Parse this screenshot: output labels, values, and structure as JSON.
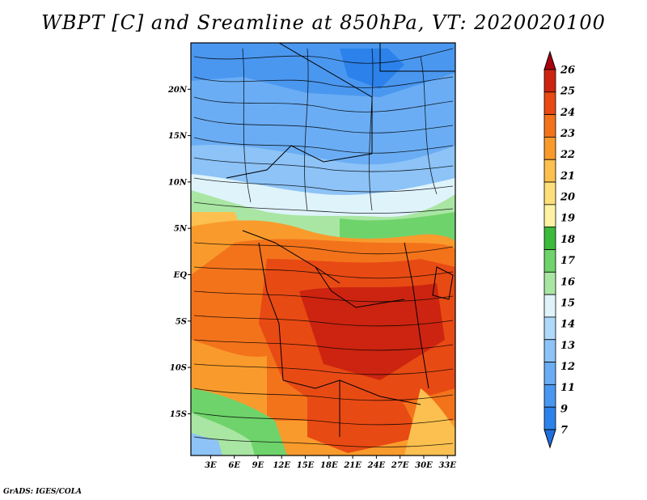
{
  "title": "WBPT [C] and Sreamline at 850hPa, VT: 2020020100",
  "credit": "GrADS: IGES/COLA",
  "map": {
    "lat_ticks": [
      "20N",
      "15N",
      "10N",
      "5N",
      "EQ",
      "5S",
      "10S",
      "15S"
    ],
    "lat_values": [
      20,
      15,
      10,
      5,
      0,
      -5,
      -10,
      -15
    ],
    "lon_ticks": [
      "3E",
      "6E",
      "9E",
      "12E",
      "15E",
      "18E",
      "21E",
      "24E",
      "27E",
      "30E",
      "33E"
    ],
    "lon_values": [
      3,
      6,
      9,
      12,
      15,
      18,
      21,
      24,
      27,
      30,
      33
    ],
    "lon_range": [
      0.5,
      34
    ],
    "lat_range": [
      -19.5,
      25
    ]
  },
  "colorbar": {
    "labels": [
      "7",
      "9",
      "11",
      "12",
      "13",
      "14",
      "15",
      "16",
      "17",
      "18",
      "19",
      "20",
      "21",
      "22",
      "23",
      "24",
      "25",
      "26"
    ],
    "colors": [
      "#1f6fe0",
      "#2c82ea",
      "#4a97f0",
      "#6aadf4",
      "#8dc3f7",
      "#b0d8fa",
      "#dff3fb",
      "#a9e6a3",
      "#6fd36b",
      "#3cba3c",
      "#fdf3a2",
      "#fde07a",
      "#fbc04f",
      "#f99b2c",
      "#f3731b",
      "#e84a14",
      "#cc2410",
      "#a8000e"
    ]
  }
}
